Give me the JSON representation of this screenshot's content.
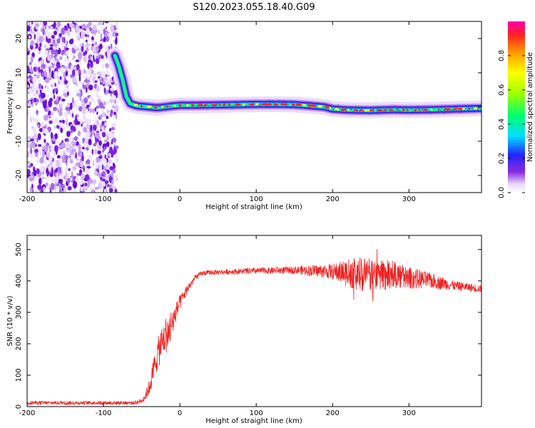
{
  "title": "S120.2023.055.18.40.G09",
  "colors": {
    "snr_line": "#ee2222",
    "ridge": "#ff2a10",
    "axis": "#000000"
  },
  "chart_data": [
    {
      "type": "heatmap",
      "xlabel": "Height of straight line (km)",
      "ylabel": "Frequency (Hz)",
      "xlim": [
        -200,
        395
      ],
      "ylim": [
        -25,
        25
      ],
      "xticks": [
        -200,
        -100,
        0,
        100,
        200,
        300
      ],
      "xtick_labels": [
        "-200",
        "-100",
        "0",
        "100",
        "200",
        "300"
      ],
      "yticks": [
        -20,
        -10,
        0,
        10,
        20
      ],
      "ytick_labels": [
        "-20",
        "-10",
        "0",
        "10",
        "20"
      ],
      "colorbar": {
        "label": "Normalized spectral amplitude",
        "range": [
          0,
          1
        ],
        "ticks": [
          0.0,
          0.2,
          0.4,
          0.6,
          0.8
        ],
        "tick_labels": [
          "0.0",
          "0.2",
          "0.4",
          "0.6",
          "0.8"
        ]
      },
      "noise_region_x": [
        -200,
        -82
      ],
      "ridge": {
        "x": [
          -85,
          -80,
          -75,
          -70,
          -65,
          -60,
          -55,
          -50,
          -40,
          -30,
          -20,
          -10,
          0,
          20,
          50,
          80,
          100,
          130,
          150,
          170,
          190,
          200,
          220,
          250,
          280,
          300,
          330,
          360,
          395
        ],
        "y": [
          15,
          12,
          8,
          3,
          1,
          0.6,
          0.3,
          0.2,
          0,
          -0.2,
          0,
          0.3,
          0.5,
          0.5,
          0.6,
          0.7,
          0.8,
          0.8,
          0.7,
          0.4,
          0,
          -0.6,
          -0.9,
          -1.0,
          -0.8,
          -0.9,
          -0.8,
          -0.6,
          -0.4
        ]
      }
    },
    {
      "type": "line",
      "xlabel": "Height of straight line (km)",
      "ylabel": "SNR (10 * v/v)",
      "xlim": [
        -200,
        395
      ],
      "ylim": [
        0,
        545
      ],
      "xticks": [
        -200,
        -100,
        0,
        100,
        200,
        300
      ],
      "xtick_labels": [
        "-200",
        "-100",
        "0",
        "100",
        "200",
        "300"
      ],
      "yticks": [
        0,
        100,
        200,
        300,
        400,
        500
      ],
      "ytick_labels": [
        "0",
        "100",
        "200",
        "300",
        "400",
        "500"
      ],
      "series": [
        {
          "x": [
            -200,
            -150,
            -100,
            -60,
            -50,
            -45,
            -40,
            -35,
            -30,
            -25,
            -20,
            -15,
            -10,
            -5,
            0,
            10,
            20,
            30,
            50,
            100,
            150,
            200,
            220,
            240,
            260,
            280,
            300,
            330,
            360,
            395
          ],
          "y": [
            12,
            12,
            12,
            12,
            18,
            35,
            60,
            110,
            160,
            195,
            220,
            240,
            265,
            300,
            330,
            375,
            410,
            425,
            428,
            432,
            435,
            430,
            425,
            420,
            420,
            420,
            410,
            400,
            385,
            375
          ],
          "spread": [
            6,
            6,
            6,
            6,
            8,
            15,
            25,
            40,
            50,
            55,
            60,
            60,
            50,
            30,
            25,
            15,
            10,
            8,
            8,
            10,
            12,
            25,
            45,
            55,
            50,
            45,
            35,
            25,
            15,
            12
          ]
        }
      ]
    }
  ]
}
